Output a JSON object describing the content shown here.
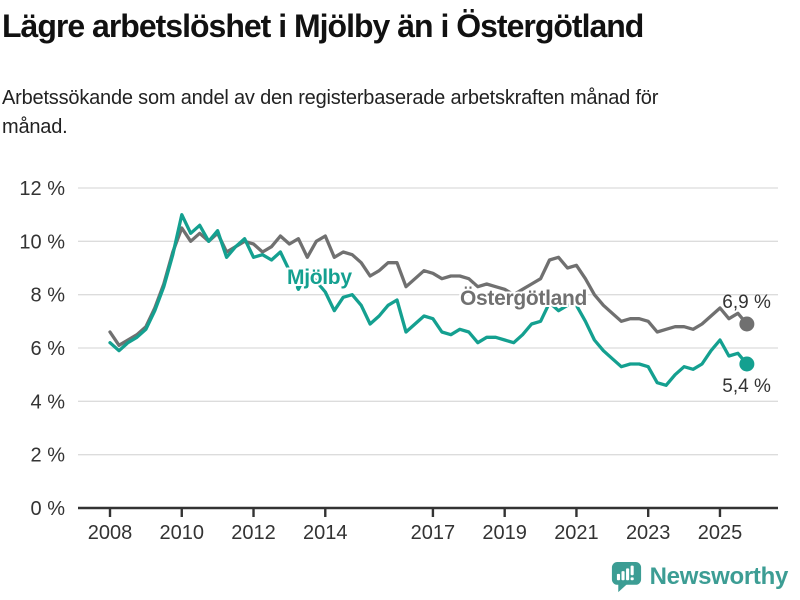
{
  "header": {
    "title": "Lägre arbetslöshet i Mjölby än i Östergötland",
    "subtitle": "Arbetssökande som andel av den registerbaserade arbetskraften månad för månad."
  },
  "colors": {
    "mjolby_line": "#14A090",
    "ostergotland_line": "#707070",
    "grid_line": "#dcdcdc",
    "axis_line": "#333333",
    "axis_text": "#333333",
    "end_label_text": "#333333",
    "logo_teal": "#3C9D94"
  },
  "chart_data": {
    "type": "line",
    "unit": "%",
    "grid": true,
    "legend_position": "inline-labels",
    "ylim": [
      0,
      12
    ],
    "xlim": [
      2008,
      2025.75
    ],
    "y_ticks": [
      {
        "label": "12 %",
        "value": 12
      },
      {
        "label": "10 %",
        "value": 10
      },
      {
        "label": "8 %",
        "value": 8
      },
      {
        "label": "6 %",
        "value": 6
      },
      {
        "label": "4 %",
        "value": 4
      },
      {
        "label": "2 %",
        "value": 2
      },
      {
        "label": "0 %",
        "value": 0
      }
    ],
    "x_ticks": [
      {
        "label": "2008",
        "value": 2008
      },
      {
        "label": "2010",
        "value": 2010
      },
      {
        "label": "2012",
        "value": 2012
      },
      {
        "label": "2014",
        "value": 2014
      },
      {
        "label": "2017",
        "value": 2017
      },
      {
        "label": "2019",
        "value": 2019
      },
      {
        "label": "2021",
        "value": 2021
      },
      {
        "label": "2023",
        "value": 2023
      },
      {
        "label": "2025",
        "value": 2025
      }
    ],
    "x": [
      2008.0,
      2008.25,
      2008.5,
      2008.75,
      2009.0,
      2009.25,
      2009.5,
      2009.75,
      2010.0,
      2010.25,
      2010.5,
      2010.75,
      2011.0,
      2011.25,
      2011.5,
      2011.75,
      2012.0,
      2012.25,
      2012.5,
      2012.75,
      2013.0,
      2013.25,
      2013.5,
      2013.75,
      2014.0,
      2014.25,
      2014.5,
      2014.75,
      2015.0,
      2015.25,
      2015.5,
      2015.75,
      2016.0,
      2016.25,
      2016.5,
      2016.75,
      2017.0,
      2017.25,
      2017.5,
      2017.75,
      2018.0,
      2018.25,
      2018.5,
      2018.75,
      2019.0,
      2019.25,
      2019.5,
      2019.75,
      2020.0,
      2020.25,
      2020.5,
      2020.75,
      2021.0,
      2021.25,
      2021.5,
      2021.75,
      2022.0,
      2022.25,
      2022.5,
      2022.75,
      2023.0,
      2023.25,
      2023.5,
      2023.75,
      2024.0,
      2024.25,
      2024.5,
      2024.75,
      2025.0,
      2025.25,
      2025.5,
      2025.75
    ],
    "series": [
      {
        "name": "Mjölby",
        "color": "#14A090",
        "end_label": "5,4 %",
        "end_value": 5.4,
        "values": [
          6.2,
          5.9,
          6.2,
          6.4,
          6.7,
          7.4,
          8.3,
          9.5,
          11.0,
          10.3,
          10.6,
          10.0,
          10.4,
          9.4,
          9.8,
          10.1,
          9.4,
          9.5,
          9.3,
          9.6,
          8.9,
          8.2,
          8.9,
          8.5,
          8.1,
          7.4,
          7.9,
          8.0,
          7.6,
          6.9,
          7.2,
          7.6,
          7.8,
          6.6,
          6.9,
          7.2,
          7.1,
          6.6,
          6.5,
          6.7,
          6.6,
          6.2,
          6.4,
          6.4,
          6.3,
          6.2,
          6.5,
          6.9,
          7.0,
          7.7,
          7.4,
          7.6,
          7.6,
          7.0,
          6.3,
          5.9,
          5.6,
          5.3,
          5.4,
          5.4,
          5.3,
          4.7,
          4.6,
          5.0,
          5.3,
          5.2,
          5.4,
          5.9,
          6.3,
          5.7,
          5.8,
          5.4
        ]
      },
      {
        "name": "Östergötland",
        "color": "#707070",
        "end_label": "6,9 %",
        "end_value": 6.9,
        "values": [
          6.6,
          6.1,
          6.3,
          6.5,
          6.8,
          7.5,
          8.4,
          9.6,
          10.5,
          10.0,
          10.3,
          10.0,
          10.3,
          9.6,
          9.8,
          10.0,
          9.9,
          9.6,
          9.8,
          10.2,
          9.9,
          10.1,
          9.4,
          10.0,
          10.2,
          9.4,
          9.6,
          9.5,
          9.2,
          8.7,
          8.9,
          9.2,
          9.2,
          8.3,
          8.6,
          8.9,
          8.8,
          8.6,
          8.7,
          8.7,
          8.6,
          8.3,
          8.4,
          8.3,
          8.2,
          8.0,
          8.2,
          8.4,
          8.6,
          9.3,
          9.4,
          9.0,
          9.1,
          8.6,
          8.0,
          7.6,
          7.3,
          7.0,
          7.1,
          7.1,
          7.0,
          6.6,
          6.7,
          6.8,
          6.8,
          6.7,
          6.9,
          7.2,
          7.5,
          7.1,
          7.3,
          6.9
        ]
      }
    ]
  },
  "footer": {
    "brand": "Newsworthy"
  }
}
